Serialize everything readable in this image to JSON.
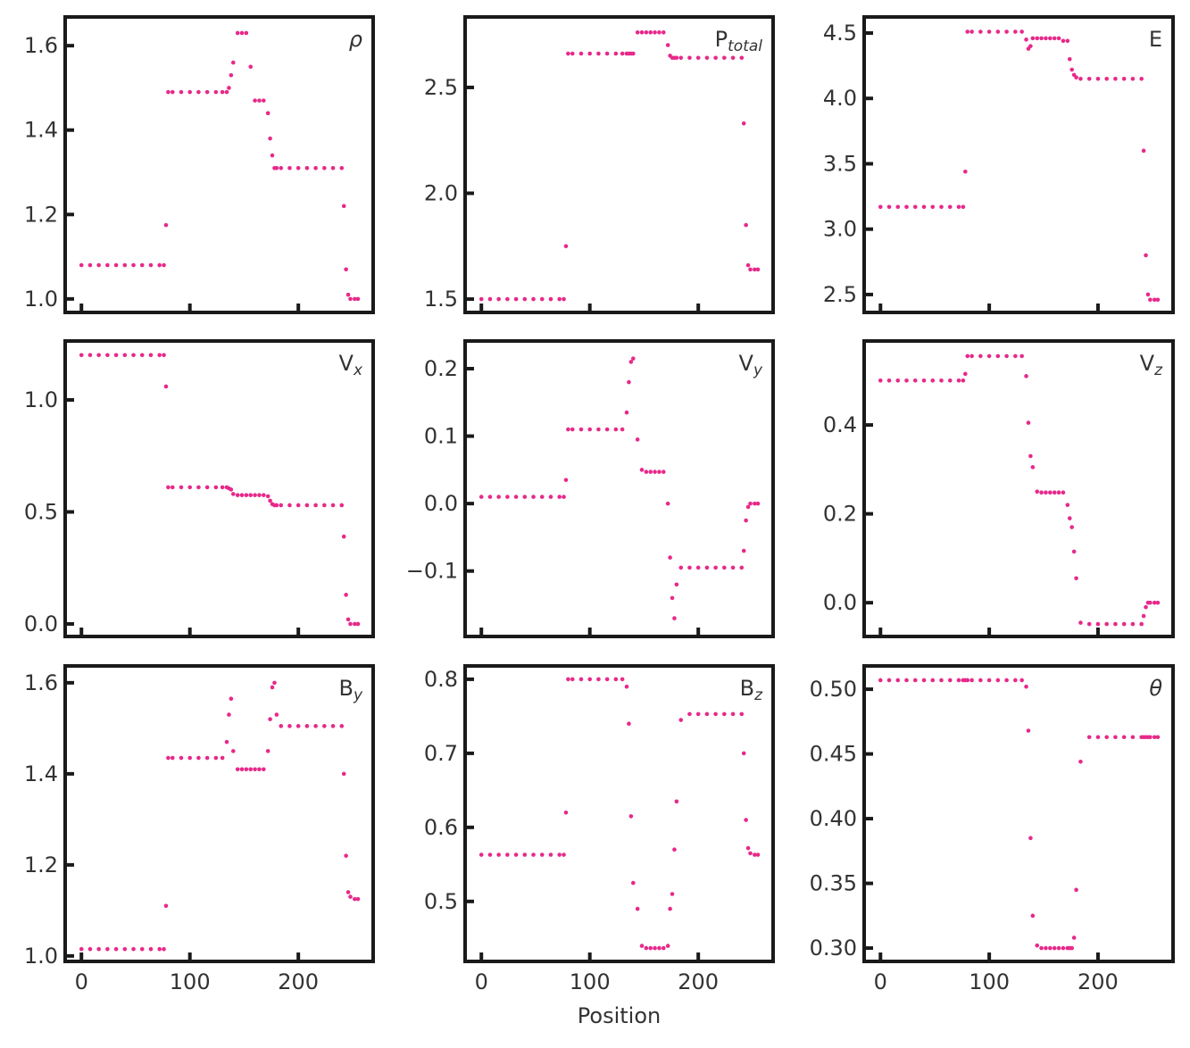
{
  "chart_data": [
    {
      "type": "scatter",
      "label": "ρ",
      "italic": true,
      "color": "#e7298a",
      "x": [
        0,
        8,
        16,
        24,
        32,
        40,
        48,
        56,
        64,
        72,
        76,
        78,
        80,
        84,
        92,
        100,
        108,
        116,
        124,
        130,
        134,
        136,
        138,
        140,
        144,
        148,
        152,
        156,
        160,
        164,
        168,
        172,
        174,
        176,
        178,
        180,
        184,
        192,
        200,
        208,
        216,
        224,
        232,
        240,
        242,
        244,
        246,
        248,
        252,
        255
      ],
      "values": [
        1.08,
        1.08,
        1.08,
        1.08,
        1.08,
        1.08,
        1.08,
        1.08,
        1.08,
        1.08,
        1.08,
        1.175,
        1.49,
        1.49,
        1.49,
        1.49,
        1.49,
        1.49,
        1.49,
        1.49,
        1.49,
        1.5,
        1.53,
        1.56,
        1.63,
        1.63,
        1.63,
        1.55,
        1.47,
        1.47,
        1.47,
        1.44,
        1.38,
        1.34,
        1.31,
        1.31,
        1.31,
        1.31,
        1.31,
        1.31,
        1.31,
        1.31,
        1.31,
        1.31,
        1.22,
        1.07,
        1.01,
        1.0,
        1.0,
        1.0
      ],
      "xlim": [
        -15,
        269
      ],
      "xticks": [
        0,
        100,
        200
      ],
      "ylim": [
        0.968,
        1.668
      ],
      "yticks": [
        {
          "value": 1,
          "label": "1.0"
        },
        1.2,
        1.4,
        1.6
      ]
    },
    {
      "type": "scatter",
      "label": "P",
      "label_sub": "total",
      "color": "#e7298a",
      "x": [
        0,
        8,
        16,
        24,
        32,
        40,
        48,
        56,
        64,
        72,
        76,
        78,
        80,
        84,
        92,
        100,
        108,
        116,
        124,
        130,
        134,
        136,
        138,
        140,
        144,
        148,
        152,
        156,
        160,
        164,
        168,
        172,
        174,
        176,
        178,
        180,
        184,
        192,
        200,
        208,
        216,
        224,
        232,
        240,
        242,
        244,
        246,
        248,
        252,
        255
      ],
      "values": [
        1.5,
        1.5,
        1.5,
        1.5,
        1.5,
        1.5,
        1.5,
        1.5,
        1.5,
        1.5,
        1.5,
        1.75,
        2.66,
        2.66,
        2.66,
        2.66,
        2.66,
        2.66,
        2.66,
        2.66,
        2.66,
        2.66,
        2.66,
        2.66,
        2.76,
        2.76,
        2.76,
        2.76,
        2.76,
        2.76,
        2.76,
        2.7,
        2.65,
        2.64,
        2.64,
        2.64,
        2.64,
        2.64,
        2.64,
        2.64,
        2.64,
        2.64,
        2.64,
        2.64,
        2.33,
        1.85,
        1.66,
        1.64,
        1.64,
        1.64
      ],
      "xlim": [
        -15,
        269
      ],
      "xticks": [
        0,
        100,
        200
      ],
      "ylim": [
        1.437,
        2.833
      ],
      "yticks": [
        1.5,
        {
          "value": 2,
          "label": "2.0"
        },
        2.5
      ]
    },
    {
      "type": "scatter",
      "label": "E",
      "color": "#e7298a",
      "x": [
        0,
        8,
        16,
        24,
        32,
        40,
        48,
        56,
        64,
        72,
        76,
        78,
        80,
        84,
        92,
        100,
        108,
        116,
        124,
        130,
        134,
        136,
        138,
        140,
        144,
        148,
        152,
        156,
        160,
        164,
        168,
        172,
        174,
        176,
        178,
        180,
        184,
        192,
        200,
        208,
        216,
        224,
        232,
        240,
        242,
        244,
        246,
        248,
        252,
        255
      ],
      "values": [
        3.17,
        3.17,
        3.17,
        3.17,
        3.17,
        3.17,
        3.17,
        3.17,
        3.17,
        3.17,
        3.17,
        3.44,
        4.51,
        4.51,
        4.51,
        4.51,
        4.51,
        4.51,
        4.51,
        4.51,
        4.45,
        4.38,
        4.4,
        4.46,
        4.46,
        4.46,
        4.46,
        4.46,
        4.46,
        4.46,
        4.44,
        4.44,
        4.3,
        4.22,
        4.18,
        4.16,
        4.15,
        4.15,
        4.15,
        4.15,
        4.15,
        4.15,
        4.15,
        4.15,
        3.6,
        2.8,
        2.5,
        2.46,
        2.46,
        2.46
      ],
      "xlim": [
        -15,
        269
      ],
      "xticks": [
        0,
        100,
        200
      ],
      "ylim": [
        2.363,
        4.623
      ],
      "yticks": [
        2.5,
        {
          "value": 3,
          "label": "3.0"
        },
        3.5,
        {
          "value": 4,
          "label": "4.0"
        },
        4.5
      ]
    },
    {
      "type": "scatter",
      "label": "V",
      "label_sub": "x",
      "color": "#e7298a",
      "x": [
        0,
        8,
        16,
        24,
        32,
        40,
        48,
        56,
        64,
        72,
        76,
        78,
        80,
        84,
        92,
        100,
        108,
        116,
        124,
        130,
        134,
        136,
        138,
        140,
        144,
        148,
        152,
        156,
        160,
        164,
        168,
        172,
        174,
        176,
        178,
        180,
        184,
        192,
        200,
        208,
        216,
        224,
        232,
        240,
        242,
        244,
        246,
        248,
        252,
        255
      ],
      "values": [
        1.2,
        1.2,
        1.2,
        1.2,
        1.2,
        1.2,
        1.2,
        1.2,
        1.2,
        1.2,
        1.2,
        1.06,
        0.61,
        0.61,
        0.61,
        0.61,
        0.61,
        0.61,
        0.61,
        0.61,
        0.61,
        0.605,
        0.6,
        0.58,
        0.575,
        0.575,
        0.575,
        0.575,
        0.575,
        0.575,
        0.575,
        0.57,
        0.55,
        0.535,
        0.53,
        0.53,
        0.53,
        0.53,
        0.53,
        0.53,
        0.53,
        0.53,
        0.53,
        0.53,
        0.39,
        0.13,
        0.02,
        0.0,
        0.0,
        0.0
      ],
      "xlim": [
        -15,
        269
      ],
      "xticks": [
        0,
        100,
        200
      ],
      "ylim": [
        -0.056,
        1.263
      ],
      "yticks": [
        {
          "value": 0,
          "label": "0.0"
        },
        0.5,
        {
          "value": 1,
          "label": "1.0"
        }
      ]
    },
    {
      "type": "scatter",
      "label": "V",
      "label_sub": "y",
      "color": "#e7298a",
      "x": [
        0,
        8,
        16,
        24,
        32,
        40,
        48,
        56,
        64,
        72,
        76,
        78,
        80,
        84,
        92,
        100,
        108,
        116,
        124,
        130,
        134,
        136,
        138,
        140,
        144,
        148,
        152,
        156,
        160,
        164,
        168,
        172,
        174,
        176,
        178,
        180,
        184,
        192,
        200,
        208,
        216,
        224,
        232,
        240,
        242,
        244,
        246,
        248,
        252,
        255
      ],
      "values": [
        0.01,
        0.01,
        0.01,
        0.01,
        0.01,
        0.01,
        0.01,
        0.01,
        0.01,
        0.01,
        0.01,
        0.035,
        0.11,
        0.11,
        0.11,
        0.11,
        0.11,
        0.11,
        0.11,
        0.11,
        0.135,
        0.18,
        0.21,
        0.215,
        0.095,
        0.05,
        0.047,
        0.047,
        0.047,
        0.047,
        0.047,
        0.0,
        -0.08,
        -0.14,
        -0.17,
        -0.12,
        -0.095,
        -0.095,
        -0.095,
        -0.095,
        -0.095,
        -0.095,
        -0.095,
        -0.095,
        -0.07,
        -0.025,
        -0.005,
        0.0,
        0.0,
        0.0
      ],
      "xlim": [
        -15,
        269
      ],
      "xticks": [
        0,
        100,
        200
      ],
      "ylim": [
        -0.197,
        0.241
      ],
      "yticks": [
        {
          "value": -0.1,
          "label": "−0.1"
        },
        {
          "value": 0,
          "label": "0.0"
        },
        0.1,
        0.2
      ]
    },
    {
      "type": "scatter",
      "label": "V",
      "label_sub": "z",
      "color": "#e7298a",
      "x": [
        0,
        8,
        16,
        24,
        32,
        40,
        48,
        56,
        64,
        72,
        76,
        78,
        80,
        84,
        92,
        100,
        108,
        116,
        124,
        130,
        134,
        136,
        138,
        140,
        144,
        148,
        152,
        156,
        160,
        164,
        168,
        172,
        174,
        176,
        178,
        180,
        184,
        192,
        200,
        208,
        216,
        224,
        232,
        240,
        242,
        244,
        246,
        248,
        252,
        255
      ],
      "values": [
        0.5,
        0.5,
        0.5,
        0.5,
        0.5,
        0.5,
        0.5,
        0.5,
        0.5,
        0.5,
        0.5,
        0.515,
        0.555,
        0.555,
        0.555,
        0.555,
        0.555,
        0.555,
        0.555,
        0.555,
        0.51,
        0.405,
        0.33,
        0.305,
        0.25,
        0.248,
        0.248,
        0.248,
        0.248,
        0.248,
        0.248,
        0.22,
        0.19,
        0.17,
        0.115,
        0.055,
        -0.045,
        -0.048,
        -0.048,
        -0.048,
        -0.048,
        -0.048,
        -0.048,
        -0.048,
        -0.03,
        -0.01,
        0.0,
        0.0,
        0.0,
        0.0
      ],
      "xlim": [
        -15,
        269
      ],
      "xticks": [
        0,
        100,
        200
      ],
      "ylim": [
        -0.076,
        0.589
      ],
      "yticks": [
        {
          "value": 0,
          "label": "0.0"
        },
        0.2,
        0.4
      ]
    },
    {
      "type": "scatter",
      "label": "B",
      "label_sub": "y",
      "color": "#e7298a",
      "x": [
        0,
        8,
        16,
        24,
        32,
        40,
        48,
        56,
        64,
        72,
        76,
        78,
        80,
        84,
        92,
        100,
        108,
        116,
        124,
        130,
        134,
        136,
        138,
        140,
        144,
        148,
        152,
        156,
        160,
        164,
        168,
        172,
        174,
        176,
        178,
        180,
        184,
        192,
        200,
        208,
        216,
        224,
        232,
        240,
        242,
        244,
        246,
        248,
        252,
        255
      ],
      "values": [
        1.015,
        1.015,
        1.015,
        1.015,
        1.015,
        1.015,
        1.015,
        1.015,
        1.015,
        1.015,
        1.015,
        1.11,
        1.435,
        1.435,
        1.435,
        1.435,
        1.435,
        1.435,
        1.435,
        1.435,
        1.47,
        1.53,
        1.565,
        1.45,
        1.41,
        1.41,
        1.41,
        1.41,
        1.41,
        1.41,
        1.41,
        1.45,
        1.52,
        1.59,
        1.6,
        1.53,
        1.505,
        1.505,
        1.505,
        1.505,
        1.505,
        1.505,
        1.505,
        1.505,
        1.4,
        1.22,
        1.14,
        1.13,
        1.125,
        1.125
      ],
      "xlim": [
        -15,
        269
      ],
      "xticks": [
        0,
        100,
        200
      ],
      "ylim": [
        0.988,
        1.637
      ],
      "yticks": [
        {
          "value": 1,
          "label": "1.0"
        },
        1.2,
        1.4,
        1.6
      ]
    },
    {
      "type": "scatter",
      "label": "B",
      "label_sub": "z",
      "color": "#e7298a",
      "xlabel": "Position",
      "x": [
        0,
        8,
        16,
        24,
        32,
        40,
        48,
        56,
        64,
        72,
        76,
        78,
        80,
        84,
        92,
        100,
        108,
        116,
        124,
        130,
        134,
        136,
        138,
        140,
        144,
        148,
        152,
        156,
        160,
        164,
        168,
        172,
        174,
        176,
        178,
        180,
        184,
        192,
        200,
        208,
        216,
        224,
        232,
        240,
        242,
        244,
        246,
        248,
        252,
        255
      ],
      "values": [
        0.563,
        0.563,
        0.563,
        0.563,
        0.563,
        0.563,
        0.563,
        0.563,
        0.563,
        0.563,
        0.563,
        0.62,
        0.8,
        0.8,
        0.8,
        0.8,
        0.8,
        0.8,
        0.8,
        0.8,
        0.79,
        0.74,
        0.615,
        0.525,
        0.49,
        0.44,
        0.437,
        0.437,
        0.437,
        0.437,
        0.437,
        0.44,
        0.49,
        0.51,
        0.57,
        0.635,
        0.745,
        0.753,
        0.753,
        0.753,
        0.753,
        0.753,
        0.753,
        0.753,
        0.7,
        0.61,
        0.572,
        0.565,
        0.563,
        0.563
      ],
      "xlim": [
        -15,
        269
      ],
      "xticks": [
        0,
        100,
        200
      ],
      "ylim": [
        0.419,
        0.818
      ],
      "yticks": [
        0.5,
        0.6,
        0.7,
        0.8
      ]
    },
    {
      "type": "scatter",
      "label": "θ",
      "italic": true,
      "color": "#e7298a",
      "x": [
        0,
        8,
        16,
        24,
        32,
        40,
        48,
        56,
        64,
        72,
        76,
        78,
        80,
        84,
        92,
        100,
        108,
        116,
        124,
        130,
        134,
        136,
        138,
        140,
        144,
        148,
        152,
        156,
        160,
        164,
        168,
        172,
        174,
        176,
        178,
        180,
        184,
        192,
        200,
        208,
        216,
        224,
        232,
        240,
        242,
        244,
        246,
        248,
        252,
        255
      ],
      "values": [
        0.507,
        0.507,
        0.507,
        0.507,
        0.507,
        0.507,
        0.507,
        0.507,
        0.507,
        0.507,
        0.507,
        0.507,
        0.507,
        0.507,
        0.507,
        0.507,
        0.507,
        0.507,
        0.507,
        0.507,
        0.502,
        0.468,
        0.385,
        0.325,
        0.302,
        0.3,
        0.3,
        0.3,
        0.3,
        0.3,
        0.3,
        0.3,
        0.3,
        0.3,
        0.308,
        0.345,
        0.444,
        0.463,
        0.463,
        0.463,
        0.463,
        0.463,
        0.463,
        0.463,
        0.463,
        0.463,
        0.463,
        0.463,
        0.463,
        0.463
      ],
      "xlim": [
        -15,
        269
      ],
      "xticks": [
        0,
        100,
        200
      ],
      "ylim": [
        0.2897,
        0.518
      ],
      "yticks": [
        {
          "value": 0.3,
          "label": "0.30"
        },
        0.35,
        {
          "value": 0.4,
          "label": "0.40"
        },
        0.45,
        {
          "value": 0.5,
          "label": "0.50"
        }
      ]
    }
  ]
}
